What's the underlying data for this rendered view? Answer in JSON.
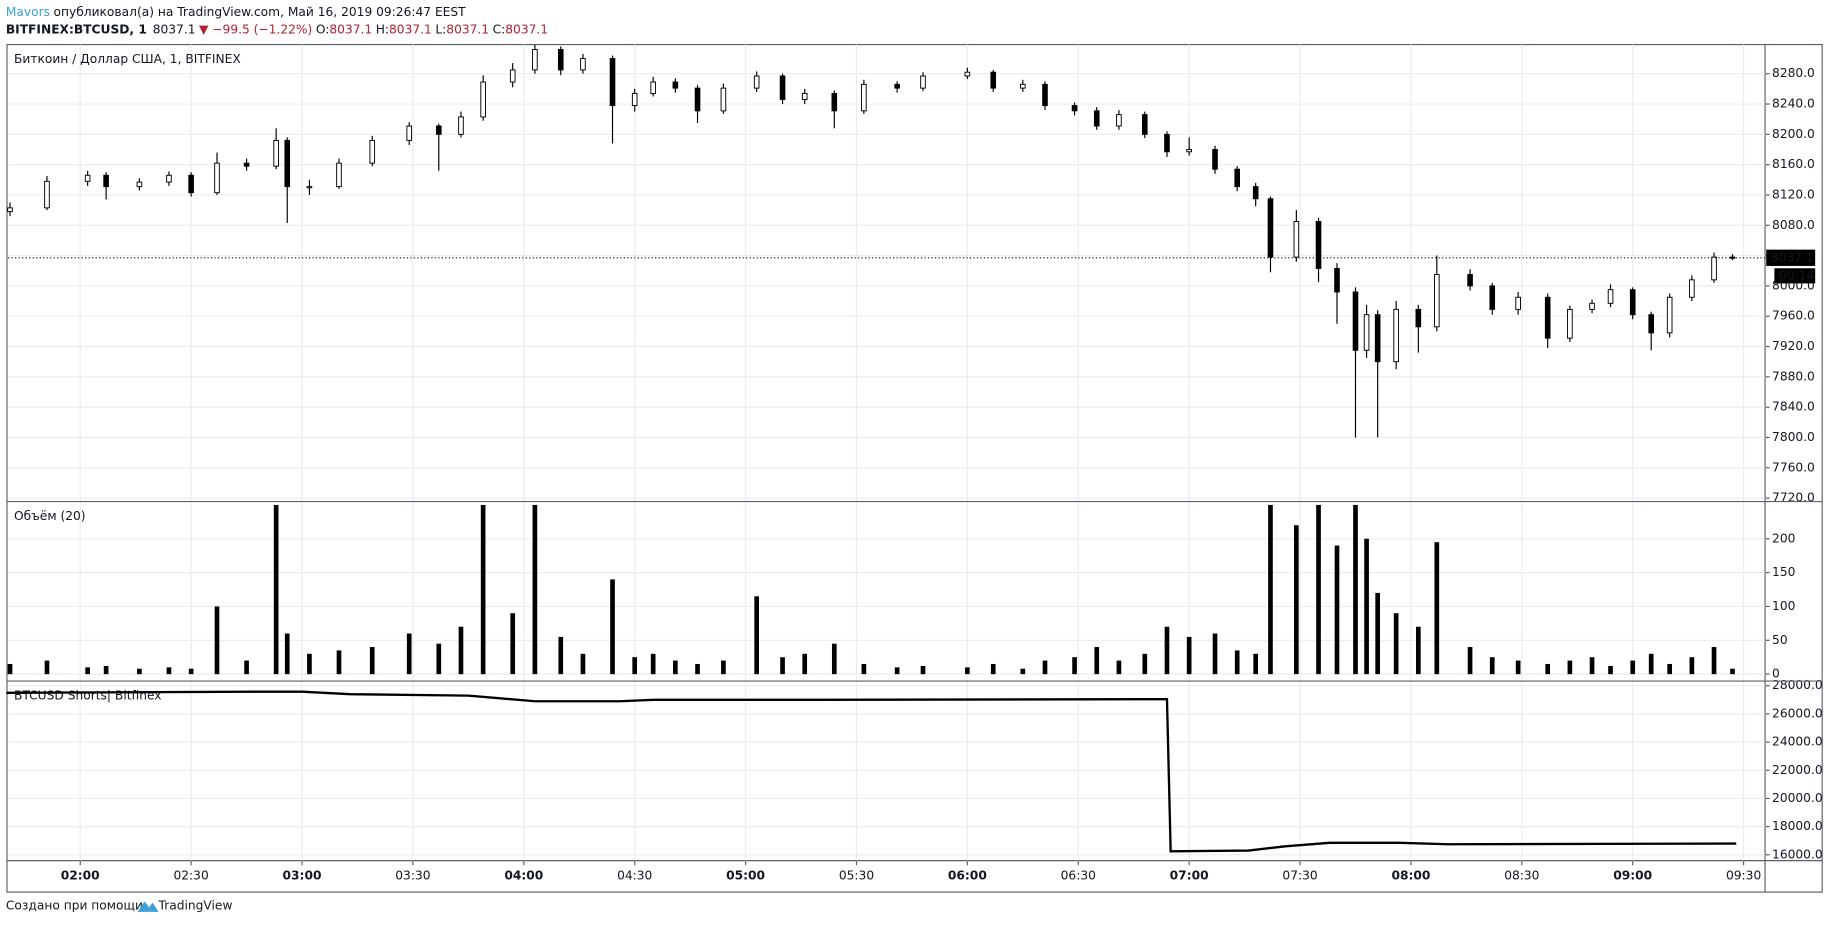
{
  "header": {
    "author": "Mavors",
    "published": "опубликовал(а) на TradingView.com, Май 16, 2019 09:26:47 EEST",
    "symbol": "BITFINEX:BTCUSD, 1",
    "last": "8037.1",
    "change": "▼ −99.5 (−1.22%)",
    "ohlc": [
      {
        "label": "O:",
        "value": "8037.1"
      },
      {
        "label": "H:",
        "value": "8037.1"
      },
      {
        "label": "L:",
        "value": "8037.1"
      },
      {
        "label": "C:",
        "value": "8037.1"
      }
    ]
  },
  "chart_data": [
    {
      "type": "candlestick",
      "title": "Биткоин / Доллар США, 1, BITFINEX",
      "up_color": "#ffffff",
      "down_color": "#000000",
      "line_color": "#000000",
      "last_price": 8037.1,
      "countdown": "00:14",
      "xlim": [
        100.5,
        575.8
      ],
      "ylim": [
        7715.4,
        8318.5
      ],
      "yticks": [
        {
          "value": 7720,
          "label": "7720.0"
        },
        {
          "value": 7760,
          "label": "7760.0"
        },
        {
          "value": 7800,
          "label": "7800.0"
        },
        {
          "value": 7840,
          "label": "7840.0"
        },
        {
          "value": 7880,
          "label": "7880.0"
        },
        {
          "value": 7920,
          "label": "7920.0"
        },
        {
          "value": 7960,
          "label": "7960.0"
        },
        {
          "value": 8000,
          "label": "8000.0"
        },
        {
          "value": 8040,
          "label": "8040.0"
        },
        {
          "value": 8080,
          "label": "8080.0"
        },
        {
          "value": 8120,
          "label": "8120.0"
        },
        {
          "value": 8160,
          "label": "8160.0"
        },
        {
          "value": 8200,
          "label": "8200.0"
        },
        {
          "value": 8240,
          "label": "8240.0"
        },
        {
          "value": 8280,
          "label": "8280.0"
        }
      ],
      "x": [
        101,
        111,
        122,
        127,
        136,
        144,
        150,
        157,
        165,
        173,
        176,
        182,
        190,
        199,
        209,
        217,
        223,
        229,
        237,
        243,
        250,
        256,
        264,
        270,
        275,
        281,
        287,
        294,
        303,
        310,
        316,
        324,
        332,
        341,
        348,
        360,
        367,
        375,
        381,
        389,
        395,
        401,
        408,
        414,
        420,
        427,
        433,
        438,
        442,
        449,
        455,
        460,
        465,
        468,
        471,
        476,
        482,
        487,
        496,
        502,
        509,
        517,
        523,
        529,
        534,
        540,
        545,
        550,
        556,
        562,
        567
      ],
      "open": [
        8098,
        8103,
        8138,
        8146,
        8131,
        8137,
        8146,
        8123,
        8162,
        8158,
        8192,
        8131,
        8131,
        8162,
        8192,
        8211,
        8200,
        8223,
        8269,
        8285,
        8312,
        8285,
        8300,
        8238,
        8254,
        8269,
        8261,
        8231,
        8261,
        8277,
        8246,
        8254,
        8231,
        8266,
        8261,
        8277,
        8282,
        8261,
        8266,
        8238,
        8231,
        8211,
        8226,
        8200,
        8177,
        8180,
        8154,
        8131,
        8115,
        8038,
        8085,
        8023,
        7992,
        7915,
        7962,
        7900,
        7969,
        7946,
        8015,
        8000,
        7969,
        7985,
        7931,
        7969,
        7977,
        7995,
        7962,
        7938,
        7985,
        8008,
        8038
      ],
      "high": [
        8110,
        8145,
        8152,
        8150,
        8142,
        8151,
        8150,
        8176,
        8168,
        8208,
        8196,
        8140,
        8168,
        8198,
        8216,
        8214,
        8230,
        8278,
        8294,
        8318,
        8316,
        8306,
        8304,
        8260,
        8276,
        8274,
        8265,
        8267,
        8283,
        8280,
        8260,
        8258,
        8272,
        8270,
        8282,
        8288,
        8285,
        8272,
        8270,
        8242,
        8236,
        8232,
        8230,
        8204,
        8196,
        8185,
        8158,
        8136,
        8118,
        8100,
        8090,
        8030,
        7998,
        7975,
        7968,
        7980,
        7975,
        8040,
        8022,
        8004,
        7992,
        7990,
        7974,
        7982,
        8002,
        7998,
        7966,
        7990,
        8014,
        8044,
        8042
      ],
      "low": [
        8092,
        8100,
        8132,
        8114,
        8126,
        8132,
        8118,
        8120,
        8152,
        8154,
        8083,
        8120,
        8128,
        8158,
        8186,
        8152,
        8196,
        8218,
        8262,
        8280,
        8278,
        8280,
        8188,
        8230,
        8250,
        8255,
        8215,
        8227,
        8256,
        8240,
        8240,
        8208,
        8227,
        8255,
        8257,
        8273,
        8256,
        8256,
        8232,
        8225,
        8206,
        8206,
        8195,
        8170,
        8172,
        8148,
        8125,
        8105,
        8018,
        8032,
        8005,
        7950,
        7800,
        7905,
        7800,
        7890,
        7912,
        7940,
        7994,
        7962,
        7962,
        7918,
        7926,
        7964,
        7972,
        7956,
        7915,
        7932,
        7980,
        8004,
        8034
      ],
      "close": [
        8103,
        8138,
        8146,
        8131,
        8137,
        8146,
        8123,
        8162,
        8158,
        8192,
        8131,
        8131,
        8162,
        8192,
        8211,
        8200,
        8223,
        8269,
        8285,
        8312,
        8285,
        8300,
        8238,
        8254,
        8269,
        8261,
        8231,
        8261,
        8277,
        8246,
        8254,
        8231,
        8266,
        8261,
        8277,
        8282,
        8261,
        8266,
        8238,
        8231,
        8211,
        8226,
        8200,
        8177,
        8180,
        8154,
        8131,
        8115,
        8038,
        8085,
        8023,
        7992,
        7915,
        7962,
        7900,
        7969,
        7946,
        8015,
        8000,
        7969,
        7985,
        7931,
        7969,
        7977,
        7995,
        7962,
        7938,
        7985,
        8008,
        8038,
        8037.1
      ]
    },
    {
      "type": "bar",
      "title": "Объём (20)",
      "color": "#000000",
      "xlim": [
        100.5,
        575.8
      ],
      "ylim": [
        -10.3,
        255
      ],
      "yticks": [
        0,
        50,
        100,
        150,
        200
      ],
      "x": [
        101,
        111,
        122,
        127,
        136,
        144,
        150,
        157,
        165,
        173,
        176,
        182,
        190,
        199,
        209,
        217,
        223,
        229,
        237,
        243,
        250,
        256,
        264,
        270,
        275,
        281,
        287,
        294,
        303,
        310,
        316,
        324,
        332,
        341,
        348,
        360,
        367,
        375,
        381,
        389,
        395,
        401,
        408,
        414,
        420,
        427,
        433,
        438,
        442,
        449,
        455,
        460,
        465,
        468,
        471,
        476,
        482,
        487,
        496,
        502,
        509,
        517,
        523,
        529,
        534,
        540,
        545,
        550,
        556,
        562,
        567
      ],
      "values": [
        15,
        20,
        10,
        12,
        8,
        10,
        8,
        100,
        20,
        250,
        60,
        30,
        35,
        40,
        60,
        45,
        70,
        250,
        90,
        250,
        55,
        30,
        140,
        25,
        30,
        20,
        15,
        20,
        115,
        25,
        30,
        45,
        15,
        10,
        12,
        10,
        15,
        8,
        20,
        25,
        40,
        20,
        30,
        70,
        55,
        60,
        35,
        30,
        250,
        220,
        250,
        190,
        250,
        200,
        120,
        90,
        70,
        195,
        40,
        25,
        20,
        15,
        20,
        25,
        12,
        20,
        30,
        15,
        25,
        40,
        8
      ]
    },
    {
      "type": "line",
      "title": "BTCUSD Shorts| Bitfinex",
      "color": "#000000",
      "xlim": [
        100.5,
        575.8
      ],
      "ylim": [
        15586,
        28331
      ],
      "yticks": [
        {
          "value": 16000,
          "label": "16000.0"
        },
        {
          "value": 18000,
          "label": "18000.0"
        },
        {
          "value": 20000,
          "label": "20000.0"
        },
        {
          "value": 22000,
          "label": "22000.0"
        },
        {
          "value": 24000,
          "label": "24000.0"
        },
        {
          "value": 26000,
          "label": "26000.0"
        },
        {
          "value": 28000,
          "label": "28000.0"
        }
      ],
      "xticks": [
        {
          "value": 120,
          "label": "02:00"
        },
        {
          "value": 150,
          "label": "02:30"
        },
        {
          "value": 180,
          "label": "03:00"
        },
        {
          "value": 210,
          "label": "03:30"
        },
        {
          "value": 240,
          "label": "04:00"
        },
        {
          "value": 270,
          "label": "04:30"
        },
        {
          "value": 300,
          "label": "05:00"
        },
        {
          "value": 330,
          "label": "05:30"
        },
        {
          "value": 360,
          "label": "06:00"
        },
        {
          "value": 390,
          "label": "06:30"
        },
        {
          "value": 420,
          "label": "07:00"
        },
        {
          "value": 450,
          "label": "07:30"
        },
        {
          "value": 480,
          "label": "08:00"
        },
        {
          "value": 510,
          "label": "08:30"
        },
        {
          "value": 540,
          "label": "09:00"
        },
        {
          "value": 570,
          "label": "09:30"
        }
      ],
      "x": [
        100,
        169,
        180,
        193,
        225,
        234,
        243,
        266,
        275,
        319,
        414,
        415,
        436,
        446,
        458,
        477,
        490,
        568
      ],
      "values": [
        27500,
        27580,
        27580,
        27400,
        27300,
        27100,
        26900,
        26900,
        27000,
        27000,
        27050,
        16250,
        16300,
        16600,
        16850,
        16850,
        16750,
        16800
      ]
    }
  ],
  "footer": {
    "text": "Создано при помощи",
    "brand": "TradingView"
  }
}
